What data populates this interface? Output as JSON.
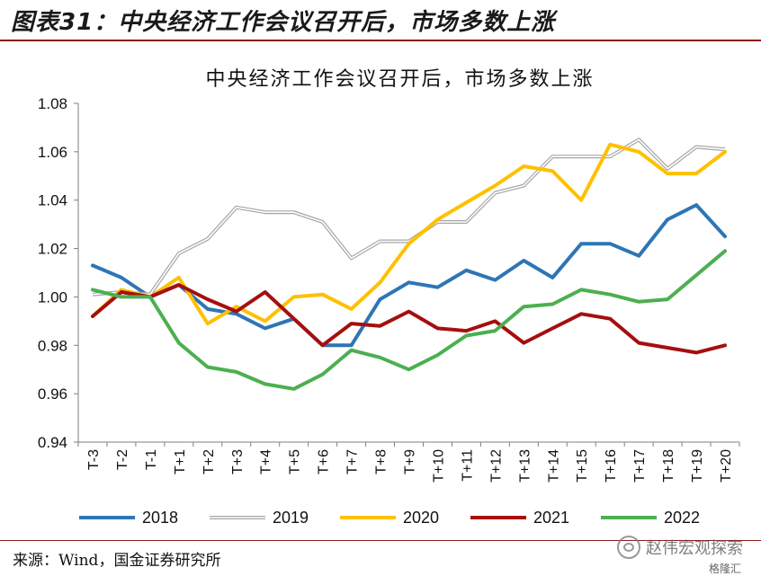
{
  "header": {
    "figure_title": "图表31：中央经济工作会议召开后，市场多数上涨"
  },
  "footer": {
    "source": "来源：Wind，国金证券研究所",
    "watermark": "赵伟宏观探索",
    "watermark_sub": "格隆汇"
  },
  "colors": {
    "rule": "#8a1c1c",
    "s2018": "#2e75b6",
    "s2019": "#a6a6a6",
    "s2020": "#ffc000",
    "s2021": "#a50f0f",
    "s2022": "#4caf50"
  },
  "chart_data": {
    "type": "line",
    "title": "中央经济工作会议召开后，市场多数上涨",
    "xlabel": "",
    "ylabel": "",
    "ylim": [
      0.94,
      1.08
    ],
    "yticks": [
      "0.94",
      "0.96",
      "0.98",
      "1.00",
      "1.02",
      "1.04",
      "1.06",
      "1.08"
    ],
    "ytick_values": [
      0.94,
      0.96,
      0.98,
      1.0,
      1.02,
      1.04,
      1.06,
      1.08
    ],
    "grid": false,
    "legend_position": "bottom",
    "categories": [
      "T-3",
      "T-2",
      "T-1",
      "T+1",
      "T+2",
      "T+3",
      "T+4",
      "T+5",
      "T+6",
      "T+7",
      "T+8",
      "T+9",
      "T+10",
      "T+11",
      "T+12",
      "T+13",
      "T+14",
      "T+15",
      "T+16",
      "T+17",
      "T+18",
      "T+19",
      "T+20"
    ],
    "series": [
      {
        "name": "2018",
        "color": "#2e75b6",
        "style": "solid",
        "values": [
          1.013,
          1.008,
          1.0,
          1.005,
          0.995,
          0.993,
          0.987,
          0.991,
          0.98,
          0.98,
          0.999,
          1.006,
          1.004,
          1.011,
          1.007,
          1.015,
          1.008,
          1.022,
          1.022,
          1.017,
          1.032,
          1.038,
          1.025
        ]
      },
      {
        "name": "2019",
        "color": "#a6a6a6",
        "style": "double",
        "values": [
          1.001,
          1.002,
          1.001,
          1.018,
          1.024,
          1.037,
          1.035,
          1.035,
          1.031,
          1.016,
          1.023,
          1.023,
          1.031,
          1.031,
          1.043,
          1.046,
          1.058,
          1.058,
          1.058,
          1.065,
          1.053,
          1.062,
          1.061
        ]
      },
      {
        "name": "2020",
        "color": "#ffc000",
        "style": "solid",
        "values": [
          0.992,
          1.003,
          1.0,
          1.008,
          0.989,
          0.996,
          0.99,
          1.0,
          1.001,
          0.995,
          1.006,
          1.022,
          1.032,
          1.039,
          1.046,
          1.054,
          1.052,
          1.04,
          1.063,
          1.06,
          1.051,
          1.051,
          1.06
        ]
      },
      {
        "name": "2021",
        "color": "#a50f0f",
        "style": "solid",
        "values": [
          0.992,
          1.002,
          1.0,
          1.005,
          0.999,
          0.994,
          1.002,
          0.991,
          0.98,
          0.989,
          0.988,
          0.994,
          0.987,
          0.986,
          0.99,
          0.981,
          0.987,
          0.993,
          0.991,
          0.981,
          0.979,
          0.977,
          0.98
        ]
      },
      {
        "name": "2022",
        "color": "#4caf50",
        "style": "solid",
        "values": [
          1.003,
          1.0,
          1.0,
          0.981,
          0.971,
          0.969,
          0.964,
          0.962,
          0.968,
          0.978,
          0.975,
          0.97,
          0.976,
          0.984,
          0.986,
          0.996,
          0.997,
          1.003,
          1.001,
          0.998,
          0.999,
          1.009,
          1.019
        ]
      }
    ]
  }
}
